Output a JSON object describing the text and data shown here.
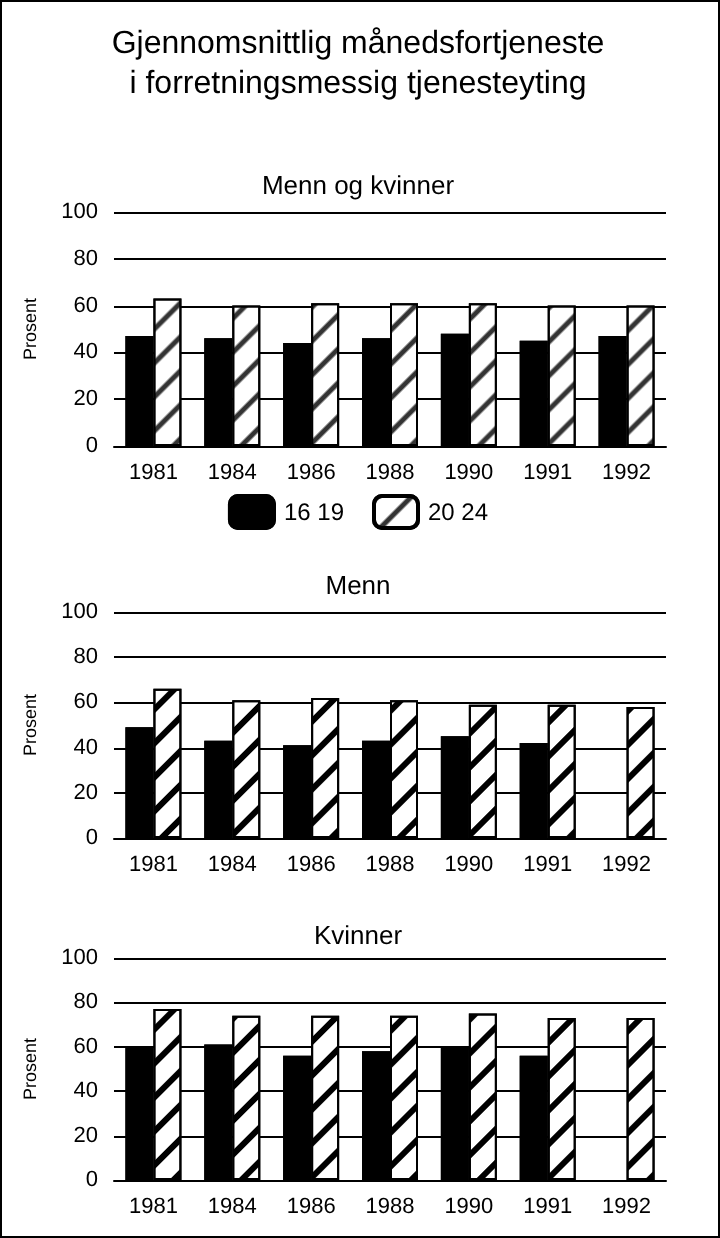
{
  "chart_data": [
    {
      "type": "bar",
      "title": "Gjennomsnittlig månedsfortjeneste\ni forretningsmessig tjenesteyting",
      "subtitle": "Menn og kvinner",
      "ylabel": "Prosent",
      "categories": [
        "1981",
        "1984",
        "1986",
        "1988",
        "1990",
        "1991",
        "1992"
      ],
      "series": [
        {
          "name": "16 19",
          "color": "#000000",
          "values": [
            47,
            46,
            44,
            46,
            48,
            45,
            47
          ]
        },
        {
          "name": "20 24",
          "color": "#ffffff",
          "values": [
            63,
            60,
            61,
            61,
            61,
            60,
            60
          ]
        }
      ],
      "ylim": [
        0,
        100
      ],
      "yticks": [
        0,
        20,
        40,
        60,
        80,
        100
      ],
      "grid": "y",
      "legend": "bottom"
    },
    {
      "type": "bar",
      "title": "Menn",
      "ylabel": "Prosent",
      "categories": [
        "1981",
        "1984",
        "1986",
        "1988",
        "1990",
        "1991",
        "1992"
      ],
      "series": [
        {
          "color": "#000000",
          "values": [
            49,
            43,
            41,
            43,
            45,
            42,
            null
          ]
        },
        {
          "color": "#ffffff",
          "values": [
            66,
            61,
            62,
            61,
            59,
            59,
            58
          ]
        }
      ],
      "ylim": [
        0,
        100
      ],
      "yticks": [
        0,
        20,
        40,
        60,
        80,
        100
      ],
      "grid": "y"
    },
    {
      "type": "bar",
      "title": "Kvinner",
      "ylabel": "Prosent",
      "categories": [
        "1981",
        "1984",
        "1986",
        "1988",
        "1990",
        "1991",
        "1992"
      ],
      "series": [
        {
          "color": "#000000",
          "values": [
            60,
            61,
            56,
            58,
            60,
            56,
            null
          ]
        },
        {
          "color": "#ffffff",
          "values": [
            77,
            74,
            74,
            74,
            75,
            73,
            73
          ]
        }
      ],
      "ylim": [
        0,
        100
      ],
      "yticks": [
        0,
        20,
        40,
        60,
        80,
        100
      ],
      "grid": "y"
    }
  ]
}
